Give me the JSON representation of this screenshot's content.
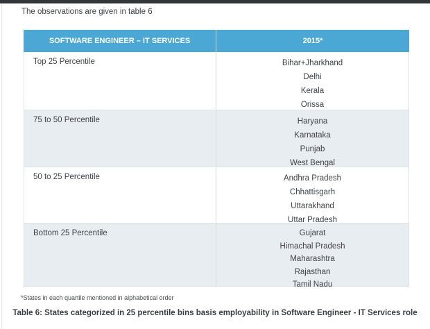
{
  "page": {
    "intro": "The observations are given in table 6",
    "footnote": "*States in each quartile mentioned in alphabetical order",
    "caption": "Table 6: States categorized in 25 percentile bins basis employability in Software Engineer - IT Services role"
  },
  "table": {
    "headers": [
      "SOFTWARE ENGINEER – IT SERVICES",
      "2015*"
    ],
    "rows": [
      {
        "label": "Top 25 Percentile",
        "states": [
          "Bihar+Jharkhand",
          "Delhi",
          "Kerala",
          "Orissa"
        ]
      },
      {
        "label": "75 to 50 Percentile",
        "states": [
          "Haryana",
          "Karnataka",
          "Punjab",
          "West Bengal"
        ]
      },
      {
        "label": "50 to 25 Percentile",
        "states": [
          "Andhra Pradesh",
          "Chhattisgarh",
          "Uttarakhand",
          "Uttar Pradesh"
        ]
      },
      {
        "label": "Bottom 25 Percentile",
        "states": [
          "Gujarat",
          "Himachal Pradesh",
          "Maharashtra",
          "Rajasthan",
          "Tamil Nadu"
        ]
      }
    ]
  },
  "colors": {
    "top_bar": "#333538",
    "header_bg": "#4BA7D3",
    "header_text": "#FFFFFF",
    "alt_row_bg": "#E8EDF1",
    "body_text": "#3F4245"
  }
}
